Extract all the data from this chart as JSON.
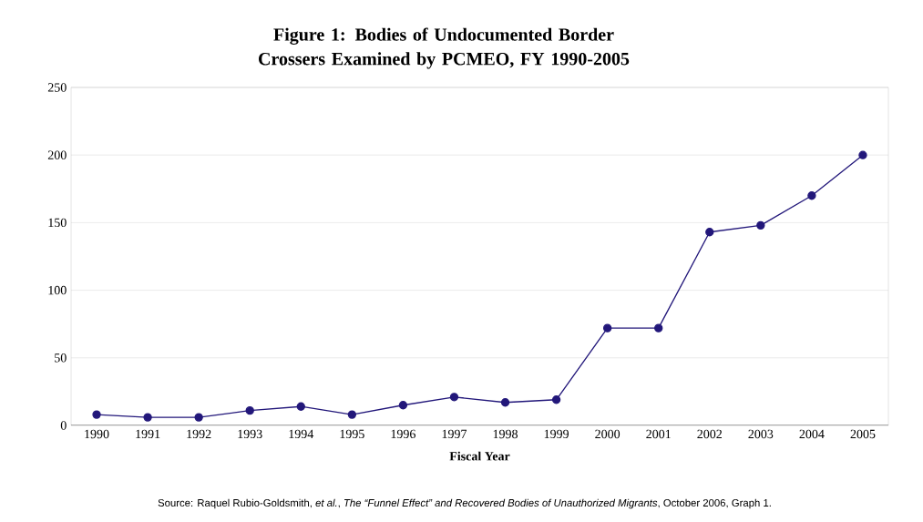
{
  "chart_data": {
    "type": "line",
    "title": "Figure 1: Bodies of Undocumented Border Crossers Examined by PCMEO, FY 1990-2005",
    "xlabel": "Fiscal Year",
    "categories": [
      "1990",
      "1991",
      "1992",
      "1993",
      "1994",
      "1995",
      "1996",
      "1997",
      "1998",
      "1999",
      "2000",
      "2001",
      "2002",
      "2003",
      "2004",
      "2005"
    ],
    "values": [
      8,
      6,
      6,
      11,
      14,
      8,
      15,
      21,
      17,
      19,
      72,
      72,
      143,
      148,
      170,
      200
    ],
    "color": "#22177a",
    "marker": "circle",
    "grid": "y",
    "ylim": [
      0,
      250
    ],
    "yticks": [
      0,
      50,
      100,
      150,
      200,
      250
    ],
    "annotations": [
      "Source: Raquel Rubio-Goldsmith, *et al.*, *The “Funnel Effect” and Recovered Bodies of Unauthorized Migrants*, October 2006, Graph 1."
    ]
  }
}
